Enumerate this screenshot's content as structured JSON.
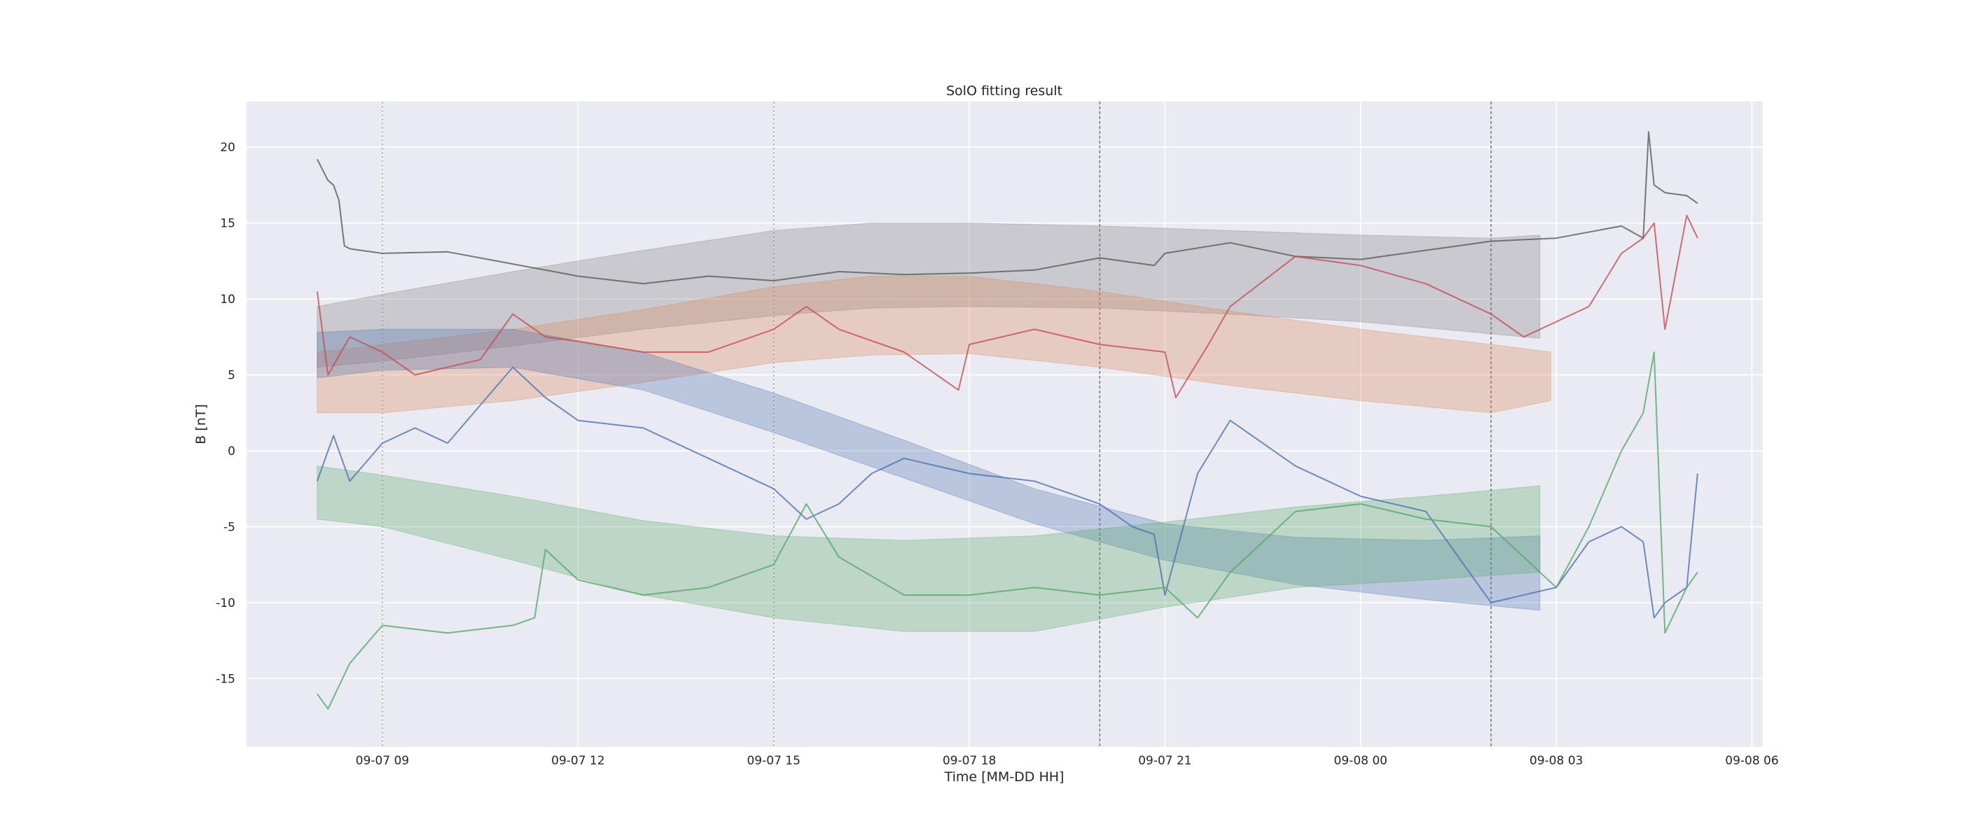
{
  "chart_data": {
    "type": "line",
    "title": "SolO fitting result",
    "xlabel": "Time [MM-DD HH]",
    "ylabel": "B [nT]",
    "xlim": [
      "2024-09-07 06:55",
      "2024-09-08 06:10"
    ],
    "ylim": [
      -19.5,
      23.0
    ],
    "grid": true,
    "x_ticks": [
      {
        "t": "2024-09-07 09:00",
        "label": "09-07 09"
      },
      {
        "t": "2024-09-07 12:00",
        "label": "09-07 12"
      },
      {
        "t": "2024-09-07 15:00",
        "label": "09-07 15"
      },
      {
        "t": "2024-09-07 18:00",
        "label": "09-07 18"
      },
      {
        "t": "2024-09-07 21:00",
        "label": "09-07 21"
      },
      {
        "t": "2024-09-08 00:00",
        "label": "09-08 00"
      },
      {
        "t": "2024-09-08 03:00",
        "label": "09-08 03"
      },
      {
        "t": "2024-09-08 06:00",
        "label": "09-08 06"
      }
    ],
    "y_ticks": [
      20,
      15,
      10,
      5,
      0,
      -5,
      -10,
      -15
    ],
    "vertical_markers": [
      {
        "t": "2024-09-07 09:00",
        "style": "dotted-light"
      },
      {
        "t": "2024-09-07 15:00",
        "style": "dotted-light"
      },
      {
        "t": "2024-09-07 20:00",
        "style": "dashed-dark"
      },
      {
        "t": "2024-09-08 02:00",
        "style": "dashed-dark"
      }
    ],
    "bands": [
      {
        "color": "#7f7f7f",
        "x": [
          "2024-09-07 08:00",
          "2024-09-07 09:00",
          "2024-09-07 11:00",
          "2024-09-07 13:00",
          "2024-09-07 15:00",
          "2024-09-07 16:30",
          "2024-09-07 18:00",
          "2024-09-07 20:00",
          "2024-09-07 22:00",
          "2024-09-08 00:00",
          "2024-09-08 02:00",
          "2024-09-08 02:45"
        ],
        "upper": [
          9.5,
          10.3,
          11.8,
          13.2,
          14.5,
          15.0,
          15.0,
          14.8,
          14.5,
          14.2,
          14.0,
          14.2
        ],
        "lower": [
          5.5,
          5.9,
          6.9,
          8.0,
          8.9,
          9.4,
          9.5,
          9.4,
          9.0,
          8.5,
          7.7,
          7.4
        ]
      },
      {
        "color": "#dd8452",
        "x": [
          "2024-09-07 08:00",
          "2024-09-07 09:00",
          "2024-09-07 11:00",
          "2024-09-07 13:00",
          "2024-09-07 15:00",
          "2024-09-07 16:30",
          "2024-09-07 18:00",
          "2024-09-07 20:00",
          "2024-09-07 22:00",
          "2024-09-08 00:00",
          "2024-09-08 02:00",
          "2024-09-08 02:55"
        ],
        "upper": [
          6.5,
          7.0,
          8.0,
          9.3,
          10.8,
          11.5,
          11.5,
          10.5,
          9.2,
          8.0,
          7.0,
          6.5
        ],
        "lower": [
          2.5,
          2.5,
          3.3,
          4.5,
          5.8,
          6.3,
          6.4,
          5.5,
          4.3,
          3.3,
          2.5,
          3.3
        ]
      },
      {
        "color": "#4c72b0",
        "x": [
          "2024-09-07 08:00",
          "2024-09-07 09:00",
          "2024-09-07 11:00",
          "2024-09-07 13:00",
          "2024-09-07 15:00",
          "2024-09-07 17:00",
          "2024-09-07 19:00",
          "2024-09-07 21:00",
          "2024-09-07 23:00",
          "2024-09-08 01:00",
          "2024-09-08 02:45"
        ],
        "upper": [
          7.8,
          8.0,
          8.0,
          6.5,
          3.8,
          0.7,
          -2.5,
          -4.8,
          -5.7,
          -5.9,
          -5.6
        ],
        "lower": [
          4.8,
          5.3,
          5.5,
          4.0,
          1.2,
          -1.8,
          -4.8,
          -7.2,
          -8.8,
          -9.8,
          -10.5
        ]
      },
      {
        "color": "#55a868",
        "x": [
          "2024-09-07 08:00",
          "2024-09-07 09:00",
          "2024-09-07 11:00",
          "2024-09-07 13:00",
          "2024-09-07 15:00",
          "2024-09-07 17:00",
          "2024-09-07 19:00",
          "2024-09-07 21:00",
          "2024-09-07 23:00",
          "2024-09-08 01:00",
          "2024-09-08 02:45"
        ],
        "upper": [
          -1.0,
          -1.6,
          -3.0,
          -4.6,
          -5.6,
          -5.9,
          -5.6,
          -4.7,
          -3.7,
          -3.0,
          -2.3
        ],
        "lower": [
          -4.5,
          -5.0,
          -7.2,
          -9.5,
          -11.0,
          -11.9,
          -11.9,
          -10.3,
          -9.0,
          -8.5,
          -8.0
        ]
      }
    ],
    "series": [
      {
        "color": "#5a5a5a",
        "x": [
          "2024-09-07 08:00",
          "2024-09-07 08:10",
          "2024-09-07 08:15",
          "2024-09-07 08:20",
          "2024-09-07 08:25",
          "2024-09-07 08:30",
          "2024-09-07 09:00",
          "2024-09-07 10:00",
          "2024-09-07 11:00",
          "2024-09-07 12:00",
          "2024-09-07 13:00",
          "2024-09-07 14:00",
          "2024-09-07 15:00",
          "2024-09-07 16:00",
          "2024-09-07 17:00",
          "2024-09-07 18:00",
          "2024-09-07 19:00",
          "2024-09-07 20:00",
          "2024-09-07 20:50",
          "2024-09-07 21:00",
          "2024-09-07 22:00",
          "2024-09-07 23:00",
          "2024-09-08 00:00",
          "2024-09-08 01:00",
          "2024-09-08 02:00",
          "2024-09-08 03:00",
          "2024-09-08 04:00",
          "2024-09-08 04:20",
          "2024-09-08 04:25",
          "2024-09-08 04:30",
          "2024-09-08 04:40",
          "2024-09-08 05:00",
          "2024-09-08 05:10"
        ],
        "y": [
          19.2,
          17.8,
          17.5,
          16.5,
          13.5,
          13.3,
          13.0,
          13.1,
          12.3,
          11.5,
          11.0,
          11.5,
          11.2,
          11.8,
          11.6,
          11.7,
          11.9,
          12.7,
          12.2,
          13.0,
          13.7,
          12.8,
          12.6,
          13.2,
          13.8,
          14.0,
          14.8,
          14.0,
          21.0,
          17.5,
          17.0,
          16.8,
          16.3
        ]
      },
      {
        "color": "#c44e52",
        "x": [
          "2024-09-07 08:00",
          "2024-09-07 08:10",
          "2024-09-07 08:30",
          "2024-09-07 09:00",
          "2024-09-07 09:30",
          "2024-09-07 10:00",
          "2024-09-07 10:30",
          "2024-09-07 11:00",
          "2024-09-07 11:30",
          "2024-09-07 12:00",
          "2024-09-07 13:00",
          "2024-09-07 14:00",
          "2024-09-07 15:00",
          "2024-09-07 15:30",
          "2024-09-07 16:00",
          "2024-09-07 17:00",
          "2024-09-07 17:50",
          "2024-09-07 18:00",
          "2024-09-07 19:00",
          "2024-09-07 20:00",
          "2024-09-07 21:00",
          "2024-09-07 21:10",
          "2024-09-07 21:40",
          "2024-09-07 22:00",
          "2024-09-07 23:00",
          "2024-09-08 00:00",
          "2024-09-08 01:00",
          "2024-09-08 02:00",
          "2024-09-08 02:30",
          "2024-09-08 03:00",
          "2024-09-08 03:30",
          "2024-09-08 04:00",
          "2024-09-08 04:20",
          "2024-09-08 04:30",
          "2024-09-08 04:40",
          "2024-09-08 05:00",
          "2024-09-08 05:10"
        ],
        "y": [
          10.5,
          5.0,
          7.5,
          6.5,
          5.0,
          5.5,
          6.0,
          9.0,
          7.5,
          7.2,
          6.5,
          6.5,
          8.0,
          9.5,
          8.0,
          6.5,
          4.0,
          7.0,
          8.0,
          7.0,
          6.5,
          3.5,
          7.0,
          9.5,
          12.8,
          12.2,
          11.0,
          9.0,
          7.5,
          8.5,
          9.5,
          13.0,
          14.0,
          15.0,
          8.0,
          15.5,
          14.0
        ]
      },
      {
        "color": "#4c72b0",
        "x": [
          "2024-09-07 08:00",
          "2024-09-07 08:15",
          "2024-09-07 08:30",
          "2024-09-07 09:00",
          "2024-09-07 09:30",
          "2024-09-07 10:00",
          "2024-09-07 10:30",
          "2024-09-07 11:00",
          "2024-09-07 11:30",
          "2024-09-07 12:00",
          "2024-09-07 13:00",
          "2024-09-07 14:00",
          "2024-09-07 15:00",
          "2024-09-07 15:30",
          "2024-09-07 16:00",
          "2024-09-07 16:30",
          "2024-09-07 17:00",
          "2024-09-07 18:00",
          "2024-09-07 19:00",
          "2024-09-07 20:00",
          "2024-09-07 20:30",
          "2024-09-07 20:50",
          "2024-09-07 21:00",
          "2024-09-07 21:30",
          "2024-09-07 22:00",
          "2024-09-07 23:00",
          "2024-09-08 00:00",
          "2024-09-08 01:00",
          "2024-09-08 01:30",
          "2024-09-08 02:00",
          "2024-09-08 03:00",
          "2024-09-08 03:30",
          "2024-09-08 04:00",
          "2024-09-08 04:20",
          "2024-09-08 04:30",
          "2024-09-08 04:40",
          "2024-09-08 05:00",
          "2024-09-08 05:10"
        ],
        "y": [
          -2.0,
          1.0,
          -2.0,
          0.5,
          1.5,
          0.5,
          3.0,
          5.5,
          3.5,
          2.0,
          1.5,
          -0.5,
          -2.5,
          -4.5,
          -3.5,
          -1.5,
          -0.5,
          -1.5,
          -2.0,
          -3.5,
          -5.0,
          -5.5,
          -9.5,
          -1.5,
          2.0,
          -1.0,
          -3.0,
          -4.0,
          -7.0,
          -10.0,
          -9.0,
          -6.0,
          -5.0,
          -6.0,
          -11.0,
          -10.0,
          -9.0,
          -1.5
        ]
      },
      {
        "color": "#55a868",
        "x": [
          "2024-09-07 08:00",
          "2024-09-07 08:10",
          "2024-09-07 08:30",
          "2024-09-07 09:00",
          "2024-09-07 10:00",
          "2024-09-07 11:00",
          "2024-09-07 11:20",
          "2024-09-07 11:30",
          "2024-09-07 12:00",
          "2024-09-07 13:00",
          "2024-09-07 14:00",
          "2024-09-07 15:00",
          "2024-09-07 15:30",
          "2024-09-07 16:00",
          "2024-09-07 17:00",
          "2024-09-07 18:00",
          "2024-09-07 19:00",
          "2024-09-07 20:00",
          "2024-09-07 21:00",
          "2024-09-07 21:30",
          "2024-09-07 22:00",
          "2024-09-07 23:00",
          "2024-09-08 00:00",
          "2024-09-08 01:00",
          "2024-09-08 02:00",
          "2024-09-08 03:00",
          "2024-09-08 03:30",
          "2024-09-08 04:00",
          "2024-09-08 04:20",
          "2024-09-08 04:30",
          "2024-09-08 04:40",
          "2024-09-08 05:00",
          "2024-09-08 05:10"
        ],
        "y": [
          -16.0,
          -17.0,
          -14.0,
          -11.5,
          -12.0,
          -11.5,
          -11.0,
          -6.5,
          -8.5,
          -9.5,
          -9.0,
          -7.5,
          -3.5,
          -7.0,
          -9.5,
          -9.5,
          -9.0,
          -9.5,
          -9.0,
          -11.0,
          -8.0,
          -4.0,
          -3.5,
          -4.5,
          -5.0,
          -9.0,
          -5.0,
          0.0,
          2.5,
          6.5,
          -12.0,
          -9.0,
          -8.0
        ]
      }
    ]
  }
}
